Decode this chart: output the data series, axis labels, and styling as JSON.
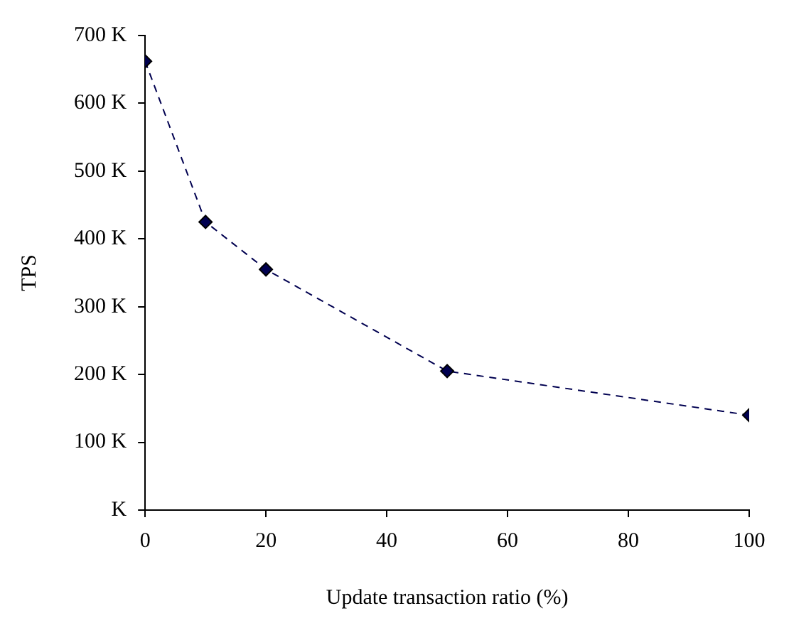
{
  "chart_data": {
    "type": "line",
    "xlabel": "Update transaction ratio (%)",
    "ylabel": "TPS",
    "x": [
      0,
      10,
      20,
      50,
      100
    ],
    "series": [
      {
        "color": "#000050",
        "values": [
          662,
          425,
          355,
          205,
          140
        ]
      }
    ],
    "xlim": [
      0,
      100
    ],
    "xticks": [
      0,
      20,
      40,
      60,
      80,
      100
    ],
    "ylim": [
      0,
      700
    ],
    "yticks": [
      {
        "value": 0,
        "label": "K"
      },
      {
        "value": 100,
        "label": "100 K"
      },
      {
        "value": 200,
        "label": "200 K"
      },
      {
        "value": 300,
        "label": "300 K"
      },
      {
        "value": 400,
        "label": "400 K"
      },
      {
        "value": 500,
        "label": "500 K"
      },
      {
        "value": 600,
        "label": "600 K"
      },
      {
        "value": 700,
        "label": "700 K"
      }
    ],
    "grid": false,
    "legend": false,
    "marker": "diamond",
    "line_style": "dashed"
  }
}
